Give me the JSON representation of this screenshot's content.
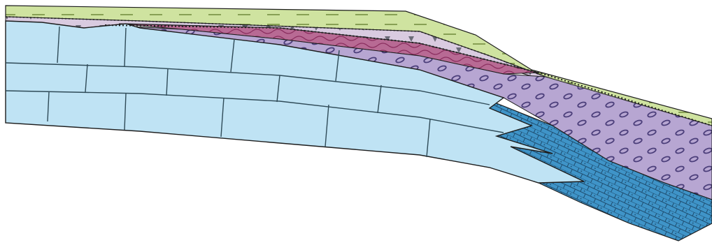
{
  "figure": {
    "kind": "geological-cross-section",
    "colors": {
      "topsoil": "#cfe3a0",
      "topsoil_dash": "#6f8a3a",
      "brecciated_cap": "#d9cbe0",
      "brecciated_triangles": "#6b6b78",
      "red_wavy_unit": "#b86a94",
      "red_wavy_lines": "#8a2d5e",
      "purple_lens_unit": "#b7a6d2",
      "purple_lens_marks": "#4b3e7a",
      "light_blue_block_unit": "#bfe3f4",
      "block_joint_lines": "#2f4b58",
      "dark_blue_tongue_unit": "#3f94c8",
      "dark_blue_cells": "#1e4c6e",
      "outline": "#1d1d1d",
      "contact_dots": "#202020"
    }
  }
}
